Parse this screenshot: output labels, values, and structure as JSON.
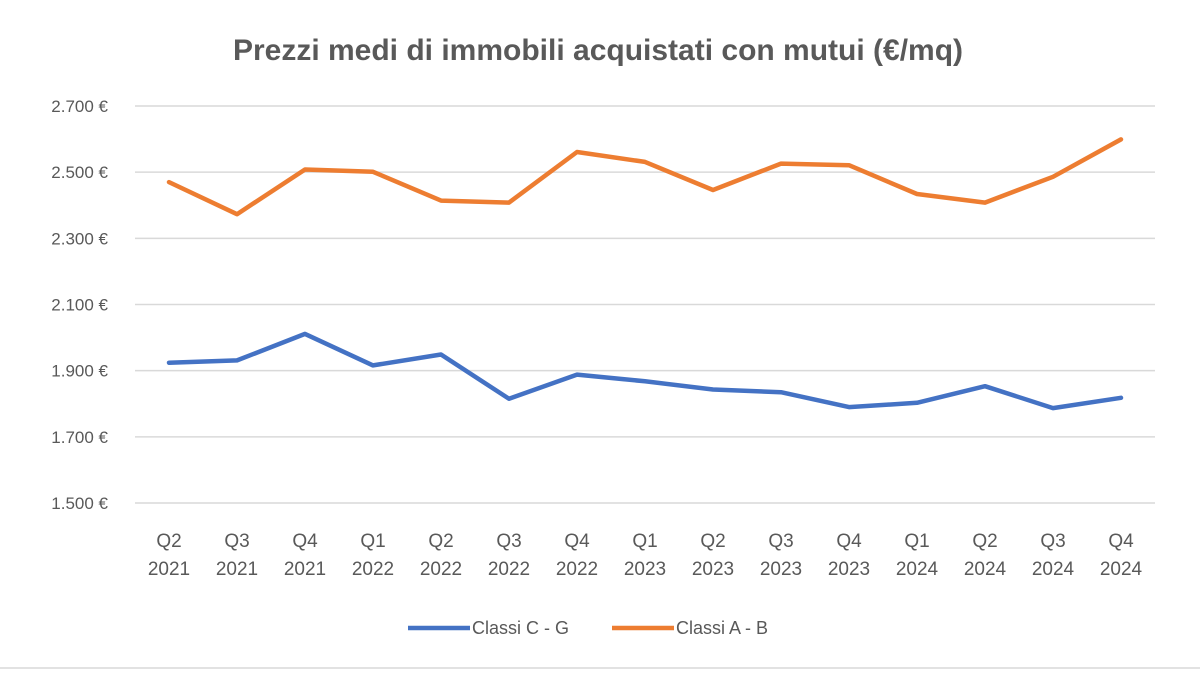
{
  "chart_data": {
    "type": "line",
    "title": "Prezzi medi di immobili acquistati con mutui (€/mq)",
    "xlabel": "",
    "ylabel": "",
    "categories": [
      [
        "Q2",
        "2021"
      ],
      [
        "Q3",
        "2021"
      ],
      [
        "Q4",
        "2021"
      ],
      [
        "Q1",
        "2022"
      ],
      [
        "Q2",
        "2022"
      ],
      [
        "Q3",
        "2022"
      ],
      [
        "Q4",
        "2022"
      ],
      [
        "Q1",
        "2023"
      ],
      [
        "Q2",
        "2023"
      ],
      [
        "Q3",
        "2023"
      ],
      [
        "Q4",
        "2023"
      ],
      [
        "Q1",
        "2024"
      ],
      [
        "Q2",
        "2024"
      ],
      [
        "Q3",
        "2024"
      ],
      [
        "Q4",
        "2024"
      ]
    ],
    "ylim": [
      1500,
      2700
    ],
    "yticks": [
      1500,
      1700,
      1900,
      2100,
      2300,
      2500,
      2700
    ],
    "ytick_labels": [
      "1.500 €",
      "1.700 €",
      "1.900 €",
      "2.100 €",
      "2.300 €",
      "2.500 €",
      "2.700 €"
    ],
    "grid": "horizontal",
    "legend_position": "bottom",
    "series": [
      {
        "name": "Classi C - G",
        "color": "#4472C4",
        "values": [
          1924,
          1931,
          2011,
          1916,
          1949,
          1815,
          1888,
          1868,
          1843,
          1835,
          1790,
          1803,
          1853,
          1787,
          1818
        ]
      },
      {
        "name": "Classi A - B",
        "color": "#ED7D31",
        "values": [
          2470,
          2373,
          2508,
          2501,
          2414,
          2408,
          2561,
          2531,
          2446,
          2526,
          2521,
          2434,
          2408,
          2486,
          2599
        ]
      }
    ]
  }
}
